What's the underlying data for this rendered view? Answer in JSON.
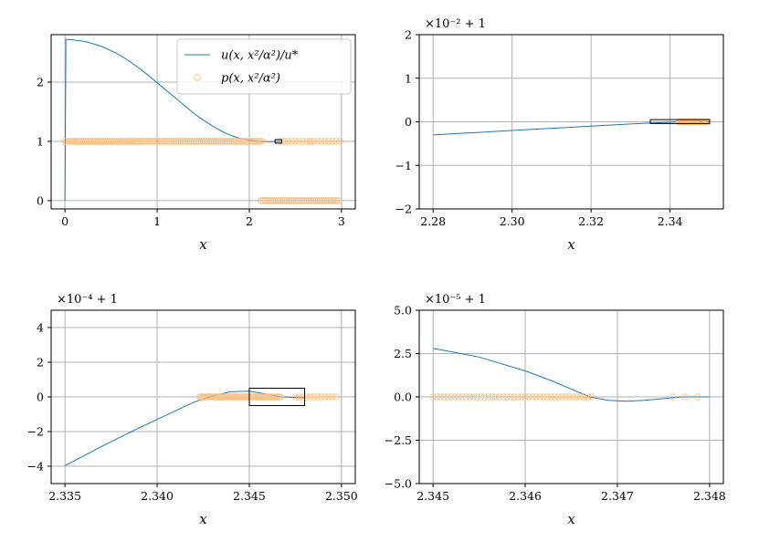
{
  "chart_data": [
    {
      "type": "line",
      "panel": "top-left",
      "xlabel": "x",
      "ylabel": "",
      "offset_label": "",
      "xlim": [
        -0.15,
        3.15
      ],
      "ylim": [
        -0.14,
        2.8
      ],
      "xticks": [
        0,
        1,
        2,
        3
      ],
      "xtick_labels": [
        "0",
        "1",
        "2",
        "3"
      ],
      "yticks": [
        0,
        1,
        2
      ],
      "ytick_labels": [
        "0",
        "1",
        "2"
      ],
      "grid": true,
      "legend": {
        "placement": "top-right",
        "entries": [
          {
            "label": "u(x, x²/α²)/u*",
            "kind": "line",
            "color": "#1f77b4"
          },
          {
            "label": "p(x, x²/α²)",
            "kind": "marker",
            "color": "#ffbb78"
          }
        ]
      },
      "series": [
        {
          "name": "u(x, x²/α²)/u*",
          "kind": "line",
          "x": [
            0,
            0.01,
            0.03,
            0.1,
            0.2,
            0.3,
            0.4,
            0.5,
            0.6,
            0.7,
            0.8,
            0.9,
            1.0,
            1.1,
            1.2,
            1.3,
            1.4,
            1.5,
            1.6,
            1.7,
            1.8,
            1.9,
            2.0,
            2.1,
            2.2,
            2.3,
            2.34
          ],
          "y": [
            0,
            2.72,
            2.72,
            2.71,
            2.69,
            2.65,
            2.6,
            2.53,
            2.45,
            2.35,
            2.24,
            2.12,
            1.99,
            1.86,
            1.73,
            1.6,
            1.47,
            1.36,
            1.26,
            1.17,
            1.1,
            1.05,
            1.02,
            1.0,
            0.995,
            0.997,
            1.0
          ]
        },
        {
          "name": "p(x, x²/α²)",
          "kind": "scatter",
          "segments": [
            {
              "x_start": 0.0,
              "x_end": 2.14,
              "step": 0.02,
              "y": 1
            },
            {
              "x_start": 2.34,
              "x_end": 2.94,
              "step": 0.04,
              "y": 1
            },
            {
              "x_start": 2.13,
              "x_end": 2.98,
              "step": 0.02,
              "y": 0
            }
          ],
          "points": [
            {
              "x": 2.98,
              "y": 1
            },
            {
              "x": 2.66,
              "y": 1
            }
          ]
        }
      ],
      "zoom_box": {
        "x": [
          2.28,
          2.35
        ],
        "y": [
          0.97,
          1.03
        ]
      }
    },
    {
      "type": "line",
      "panel": "top-right",
      "xlabel": "x",
      "ylabel": "",
      "offset_label": "×10⁻² + 1",
      "xlim": [
        2.2765,
        2.3535
      ],
      "ylim": [
        -2,
        2
      ],
      "xticks": [
        2.28,
        2.3,
        2.32,
        2.34
      ],
      "xtick_labels": [
        "2.28",
        "2.30",
        "2.32",
        "2.34"
      ],
      "yticks": [
        -2,
        -1,
        0,
        1,
        2
      ],
      "ytick_labels": [
        "−2",
        "−1",
        "0",
        "1",
        "2"
      ],
      "grid": true,
      "series": [
        {
          "name": "",
          "kind": "line",
          "x": [
            2.28,
            2.29,
            2.3,
            2.31,
            2.32,
            2.33,
            2.335,
            2.34,
            2.342,
            2.345,
            2.347,
            2.35
          ],
          "y": [
            -0.3,
            -0.25,
            -0.2,
            -0.15,
            -0.1,
            -0.05,
            -0.03,
            -0.01,
            0,
            0.003,
            0,
            0
          ]
        },
        {
          "name": "",
          "kind": "scatter",
          "segments": [
            {
              "x_start": 2.3423,
              "x_end": 2.3467,
              "step": 0.0002,
              "y": 0
            },
            {
              "x_start": 2.3475,
              "x_end": 2.3498,
              "step": 0.00045,
              "y": 0
            }
          ],
          "points": []
        }
      ],
      "zoom_box": {
        "x": [
          2.335,
          2.35
        ],
        "y": [
          -0.04,
          0.05
        ]
      }
    },
    {
      "type": "line",
      "panel": "bottom-left",
      "xlabel": "x",
      "ylabel": "",
      "offset_label": "×10⁻⁴ + 1",
      "xlim": [
        2.33425,
        2.35075
      ],
      "ylim": [
        -5,
        5
      ],
      "xticks": [
        2.335,
        2.34,
        2.345,
        2.35
      ],
      "xtick_labels": [
        "2.335",
        "2.340",
        "2.345",
        "2.350"
      ],
      "yticks": [
        -4,
        -2,
        0,
        2,
        4
      ],
      "ytick_labels": [
        "−4",
        "−2",
        "0",
        "2",
        "4"
      ],
      "grid": true,
      "series": [
        {
          "name": "",
          "kind": "line",
          "x": [
            2.335,
            2.337,
            2.339,
            2.341,
            2.342,
            2.343,
            2.344,
            2.345,
            2.346,
            2.3467,
            2.348
          ],
          "y": [
            -3.97,
            -2.85,
            -1.8,
            -0.8,
            -0.3,
            0.05,
            0.3,
            0.33,
            0.15,
            0.0,
            -0.05
          ]
        },
        {
          "name": "",
          "kind": "scatter",
          "segments": [
            {
              "x_start": 2.3423,
              "x_end": 2.3467,
              "step": 8e-05,
              "y": 0
            },
            {
              "x_start": 2.3475,
              "x_end": 2.3498,
              "step": 0.0002,
              "y": 0
            }
          ],
          "points": []
        }
      ],
      "zoom_box": {
        "x": [
          2.345,
          2.348
        ],
        "y": [
          -0.5,
          0.5
        ]
      }
    },
    {
      "type": "line",
      "panel": "bottom-right",
      "xlabel": "x",
      "ylabel": "",
      "offset_label": "×10⁻⁵ + 1",
      "xlim": [
        2.34485,
        2.34815
      ],
      "ylim": [
        -5,
        5
      ],
      "xticks": [
        2.345,
        2.346,
        2.347,
        2.348
      ],
      "xtick_labels": [
        "2.345",
        "2.346",
        "2.347",
        "2.348"
      ],
      "yticks": [
        -5,
        -2.5,
        0,
        2.5,
        5
      ],
      "ytick_labels": [
        "−5.0",
        "−2.5",
        "0.0",
        "2.5",
        "5.0"
      ],
      "grid": true,
      "series": [
        {
          "name": "",
          "kind": "line",
          "x": [
            2.345,
            2.3455,
            2.346,
            2.3463,
            2.3465,
            2.3467,
            2.3469,
            2.3471,
            2.3473,
            2.3475,
            2.3477,
            2.348
          ],
          "y": [
            2.8,
            2.3,
            1.5,
            0.9,
            0.45,
            0.0,
            -0.2,
            -0.25,
            -0.2,
            -0.1,
            0.0,
            0.0
          ]
        },
        {
          "name": "",
          "kind": "scatter",
          "segments": [
            {
              "x_start": 2.345,
              "x_end": 2.34672,
              "step": 4e-05,
              "y": 0
            }
          ],
          "points": [
            {
              "x": 2.3476,
              "y": 0
            },
            {
              "x": 2.34773,
              "y": 0
            },
            {
              "x": 2.34787,
              "y": 0
            }
          ]
        }
      ]
    }
  ]
}
